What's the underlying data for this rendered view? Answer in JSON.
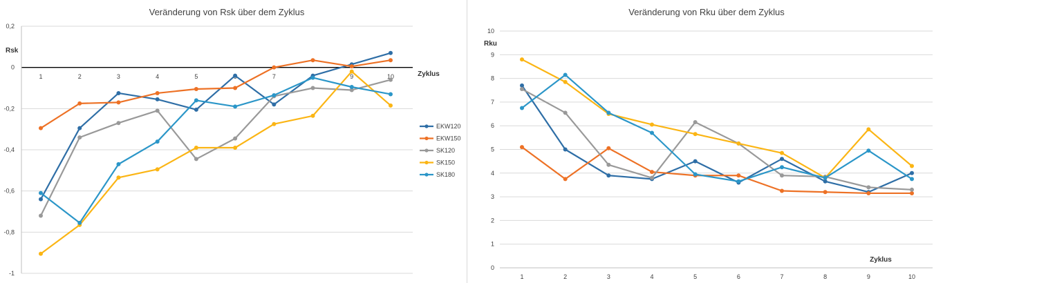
{
  "chart_data": [
    {
      "type": "line",
      "title": "Veränderung von Rsk über dem Zyklus",
      "xlabel": "Zyklus",
      "ylabel": "Rsk",
      "categories": [
        "1",
        "2",
        "3",
        "4",
        "5",
        "6",
        "7",
        "8",
        "9",
        "10"
      ],
      "ylim": [
        -1,
        0.2
      ],
      "yticks": [
        0.2,
        0,
        -0.2,
        -0.4,
        -0.6,
        -0.8,
        -1
      ],
      "ytick_labels": [
        "0,2",
        "0",
        "-0,2",
        "-0,4",
        "-0,6",
        "-0,8",
        "-1"
      ],
      "grid": true,
      "legend": "right",
      "series": [
        {
          "name": "EKW120",
          "color": "#2e6ea6",
          "values": [
            -0.64,
            -0.295,
            -0.125,
            -0.155,
            -0.205,
            -0.04,
            -0.18,
            -0.04,
            0.015,
            0.07
          ]
        },
        {
          "name": "EKW150",
          "color": "#ed7125",
          "values": [
            -0.295,
            -0.175,
            -0.17,
            -0.125,
            -0.105,
            -0.1,
            0.0,
            0.035,
            0.005,
            0.035
          ]
        },
        {
          "name": "SK120",
          "color": "#999999",
          "values": [
            -0.72,
            -0.34,
            -0.27,
            -0.21,
            -0.445,
            -0.345,
            -0.14,
            -0.1,
            -0.11,
            -0.06
          ]
        },
        {
          "name": "SK150",
          "color": "#fbb514",
          "values": [
            -0.905,
            -0.765,
            -0.535,
            -0.495,
            -0.39,
            -0.39,
            -0.275,
            -0.235,
            -0.02,
            -0.185
          ]
        },
        {
          "name": "SK180",
          "color": "#2b96c8",
          "values": [
            -0.61,
            -0.755,
            -0.47,
            -0.36,
            -0.16,
            -0.19,
            -0.135,
            -0.05,
            -0.095,
            -0.13
          ]
        }
      ]
    },
    {
      "type": "line",
      "title": "Veränderung von Rku über dem Zyklus",
      "xlabel": "Zyklus",
      "ylabel": "Rku",
      "categories": [
        "1",
        "2",
        "3",
        "4",
        "5",
        "6",
        "7",
        "8",
        "9",
        "10"
      ],
      "ylim": [
        0,
        10
      ],
      "yticks": [
        0,
        1,
        2,
        3,
        4,
        5,
        6,
        7,
        8,
        9,
        10
      ],
      "ytick_labels": [
        "0",
        "1",
        "2",
        "3",
        "4",
        "5",
        "6",
        "7",
        "8",
        "9",
        "10"
      ],
      "grid": true,
      "legend": "none",
      "series": [
        {
          "color": "#2e6ea6",
          "values": [
            7.7,
            5.0,
            3.9,
            3.75,
            4.5,
            3.6,
            4.6,
            3.65,
            3.2,
            4.0
          ]
        },
        {
          "color": "#ed7125",
          "values": [
            5.1,
            3.75,
            5.05,
            4.05,
            3.9,
            3.9,
            3.25,
            3.2,
            3.15,
            3.15
          ]
        },
        {
          "color": "#999999",
          "values": [
            7.55,
            6.55,
            4.35,
            3.8,
            6.15,
            5.25,
            3.9,
            3.85,
            3.4,
            3.3
          ]
        },
        {
          "color": "#fbb514",
          "values": [
            8.8,
            7.85,
            6.5,
            6.05,
            5.65,
            5.25,
            4.85,
            3.8,
            5.85,
            4.3
          ]
        },
        {
          "color": "#2b96c8",
          "values": [
            6.75,
            8.15,
            6.55,
            5.7,
            3.95,
            3.65,
            4.25,
            3.8,
            4.95,
            3.75
          ]
        }
      ]
    }
  ]
}
